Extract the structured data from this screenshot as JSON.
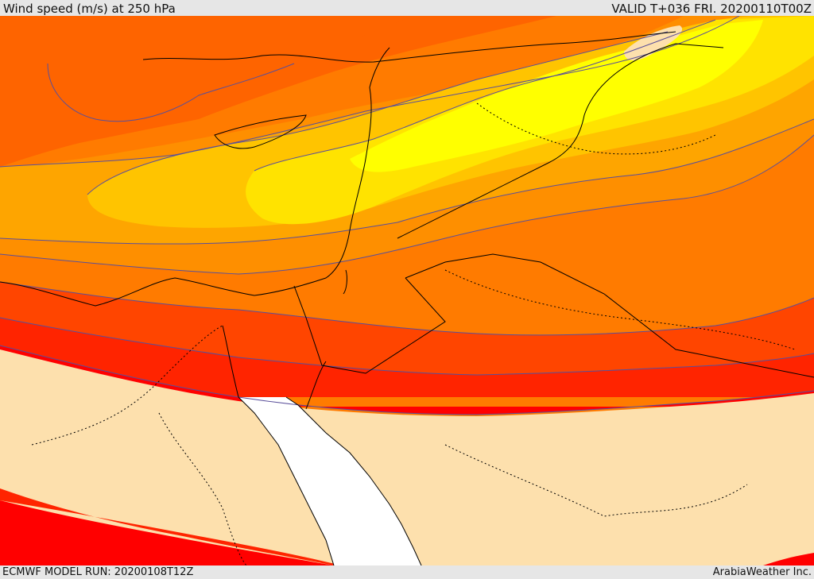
{
  "header": {
    "title": "Wind speed (m/s) at 250 hPa",
    "valid_time": "VALID T+036 FRI. 20200110T00Z"
  },
  "footer": {
    "model_run": "ECMWF MODEL RUN: 20200108T12Z",
    "credit": "ArabiaWeather Inc."
  },
  "colors": {
    "calm": "#fde0ad",
    "band_1": "#ff7b00",
    "band_2": "#fe6400",
    "band_3": "#fe8f00",
    "band_4": "#fea500",
    "band_5": "#ffc400",
    "band_6": "#ffe300",
    "band_7": "#ffff00",
    "band_8": "#ff4500",
    "band_9": "#ff2400",
    "band_10": "#ff0000",
    "sea": "#ffffff",
    "contour": "#5a4f9a",
    "coastline": "#000000"
  }
}
